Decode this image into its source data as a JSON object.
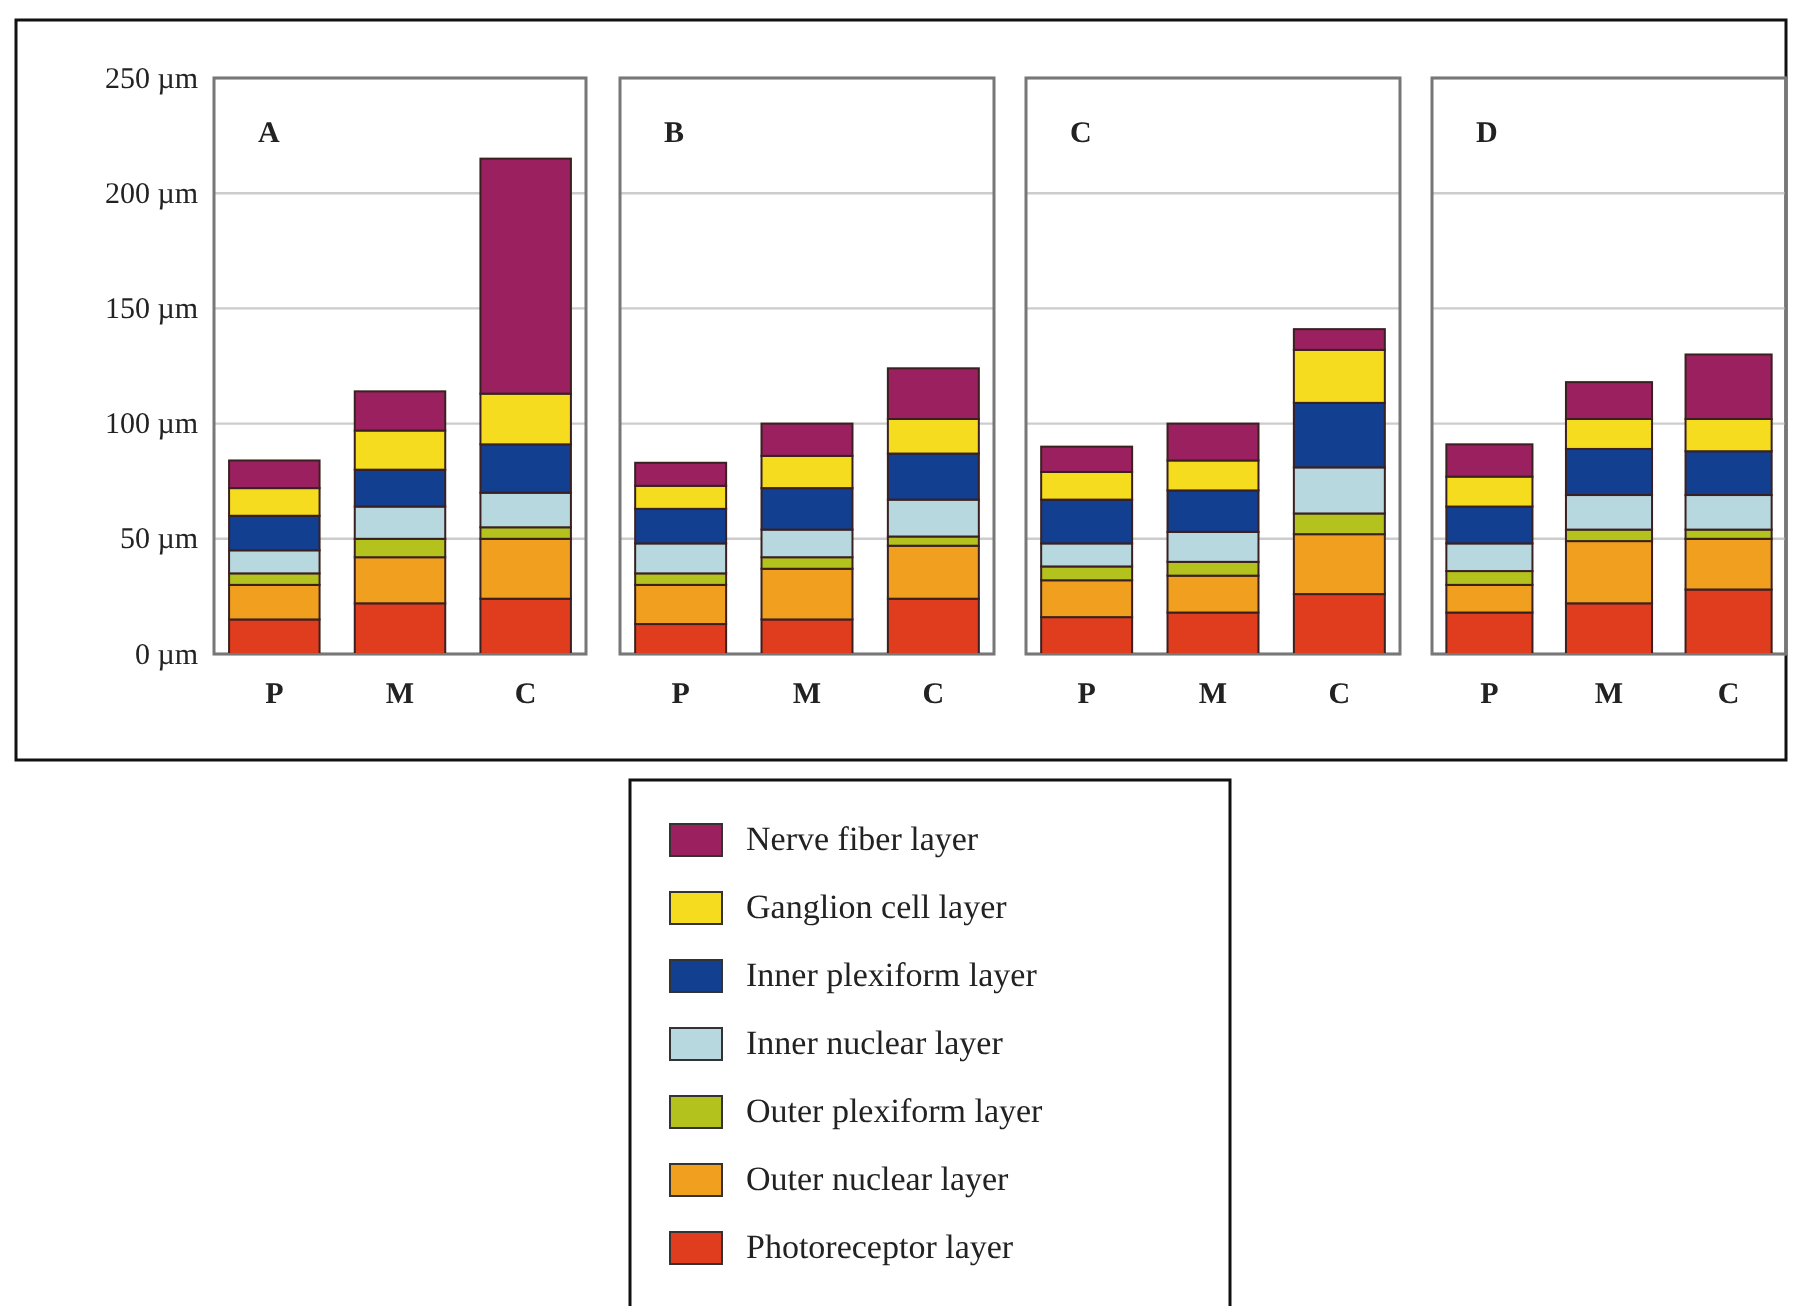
{
  "chart_data": [
    {
      "type": "bar",
      "title": "A",
      "stacked": true,
      "categories": [
        "P",
        "M",
        "C"
      ],
      "ylim": [
        0,
        250
      ],
      "yticks": [
        {
          "value": 0,
          "label": "0 µm"
        },
        {
          "value": 50,
          "label": "50 µm"
        },
        {
          "value": 100,
          "label": "100 µm"
        },
        {
          "value": 150,
          "label": "150 µm"
        },
        {
          "value": 200,
          "label": "200 µm"
        },
        {
          "value": 250,
          "label": "250 µm"
        }
      ],
      "grid": "y",
      "legend": "bottom",
      "series": [
        {
          "name": "Photoreceptor layer",
          "color": "#e03c1e",
          "values": [
            15,
            22,
            24
          ]
        },
        {
          "name": "Outer nuclear layer",
          "color": "#f0a01e",
          "values": [
            15,
            20,
            26
          ]
        },
        {
          "name": "Outer plexiform layer",
          "color": "#b4c21e",
          "values": [
            5,
            8,
            5
          ]
        },
        {
          "name": "Inner nuclear layer",
          "color": "#b8d8e0",
          "values": [
            10,
            14,
            15
          ]
        },
        {
          "name": "Inner plexiform layer",
          "color": "#123f8f",
          "values": [
            15,
            16,
            21
          ]
        },
        {
          "name": "Ganglion cell layer",
          "color": "#f5dc1e",
          "values": [
            12,
            17,
            22
          ]
        },
        {
          "name": "Nerve fiber layer",
          "color": "#9b2060",
          "values": [
            12,
            17,
            102
          ]
        }
      ]
    },
    {
      "type": "bar",
      "title": "B",
      "stacked": true,
      "categories": [
        "P",
        "M",
        "C"
      ],
      "ylim": [
        0,
        250
      ],
      "yticks": [
        0,
        50,
        100,
        150,
        200,
        250
      ],
      "grid": "y",
      "tick_labels": "x",
      "series": [
        {
          "color": "#e03c1e",
          "values": [
            13,
            15,
            24
          ]
        },
        {
          "color": "#f0a01e",
          "values": [
            17,
            22,
            23
          ]
        },
        {
          "color": "#b4c21e",
          "values": [
            5,
            5,
            4
          ]
        },
        {
          "color": "#b8d8e0",
          "values": [
            13,
            12,
            16
          ]
        },
        {
          "color": "#123f8f",
          "values": [
            15,
            18,
            20
          ]
        },
        {
          "color": "#f5dc1e",
          "values": [
            10,
            14,
            15
          ]
        },
        {
          "color": "#9b2060",
          "values": [
            10,
            14,
            22
          ]
        }
      ]
    },
    {
      "type": "bar",
      "title": "C",
      "stacked": true,
      "categories": [
        "P",
        "M",
        "C"
      ],
      "ylim": [
        0,
        250
      ],
      "yticks": [
        0,
        50,
        100,
        150,
        200,
        250
      ],
      "grid": "y",
      "tick_labels": "x",
      "series": [
        {
          "color": "#e03c1e",
          "values": [
            16,
            18,
            26
          ]
        },
        {
          "color": "#f0a01e",
          "values": [
            16,
            16,
            26
          ]
        },
        {
          "color": "#b4c21e",
          "values": [
            6,
            6,
            9
          ]
        },
        {
          "color": "#b8d8e0",
          "values": [
            10,
            13,
            20
          ]
        },
        {
          "color": "#123f8f",
          "values": [
            19,
            18,
            28
          ]
        },
        {
          "color": "#f5dc1e",
          "values": [
            12,
            13,
            23
          ]
        },
        {
          "color": "#9b2060",
          "values": [
            11,
            16,
            9
          ]
        }
      ]
    },
    {
      "type": "bar",
      "title": "D",
      "stacked": true,
      "categories": [
        "P",
        "M",
        "C"
      ],
      "ylim": [
        0,
        250
      ],
      "yticks": [
        0,
        50,
        100,
        150,
        200,
        250
      ],
      "grid": "y",
      "tick_labels": "x",
      "series": [
        {
          "color": "#e03c1e",
          "values": [
            18,
            22,
            28
          ]
        },
        {
          "color": "#f0a01e",
          "values": [
            12,
            27,
            22
          ]
        },
        {
          "color": "#b4c21e",
          "values": [
            6,
            5,
            4
          ]
        },
        {
          "color": "#b8d8e0",
          "values": [
            12,
            15,
            15
          ]
        },
        {
          "color": "#123f8f",
          "values": [
            16,
            20,
            19
          ]
        },
        {
          "color": "#f5dc1e",
          "values": [
            13,
            13,
            14
          ]
        },
        {
          "color": "#9b2060",
          "values": [
            14,
            16,
            28
          ]
        }
      ]
    }
  ]
}
